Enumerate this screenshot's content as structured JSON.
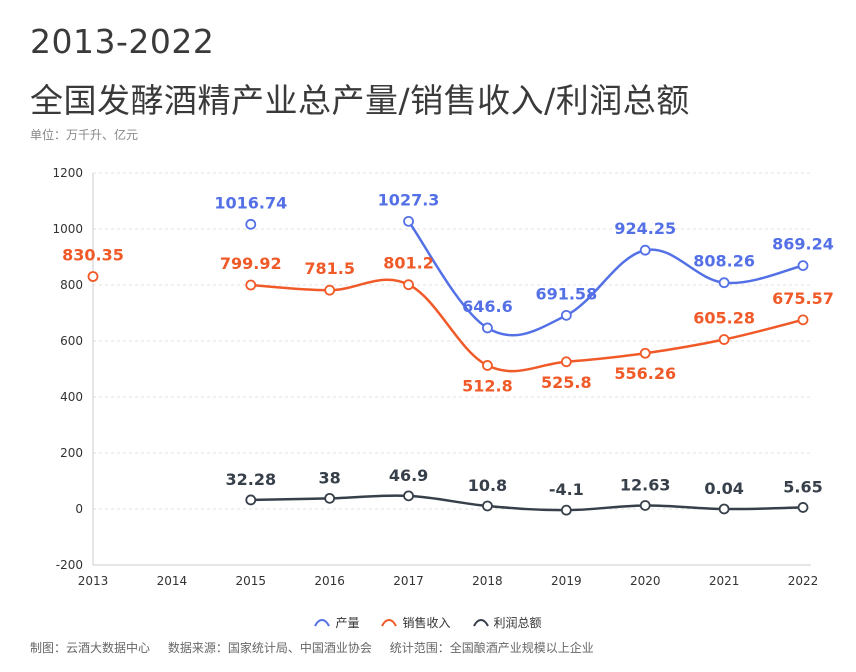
{
  "header": {
    "title_line1": "2013-2022",
    "title_line2": "全国发酵酒精产业总产量/销售收入/利润总额",
    "unit": "单位：万千升、亿元"
  },
  "chart_data": {
    "type": "line",
    "categories": [
      "2013",
      "2014",
      "2015",
      "2016",
      "2017",
      "2018",
      "2019",
      "2020",
      "2021",
      "2022"
    ],
    "ylim": [
      -200,
      1200
    ],
    "yticks": [
      -200,
      0,
      200,
      400,
      600,
      800,
      1000,
      1200
    ],
    "grid": true,
    "legend_position": "bottom-center",
    "series": [
      {
        "name": "产量",
        "color": "#5470e6",
        "values": [
          null,
          null,
          1016.74,
          null,
          1027.3,
          646.6,
          691.58,
          924.25,
          808.26,
          869.24
        ],
        "labels": [
          null,
          null,
          "1016.74",
          null,
          "1027.3",
          "646.6",
          "691.58",
          "924.25",
          "808.26",
          "869.24"
        ]
      },
      {
        "name": "销售收入",
        "color": "#f05a28",
        "values": [
          830.35,
          null,
          799.92,
          781.5,
          801.2,
          512.8,
          525.8,
          556.26,
          605.28,
          675.57
        ],
        "labels": [
          "830.35",
          null,
          "799.92",
          "781.5",
          "801.2",
          "512.8",
          "525.8",
          "556.26",
          "605.28",
          "675.57"
        ]
      },
      {
        "name": "利润总额",
        "color": "#37404a",
        "values": [
          null,
          null,
          32.28,
          38,
          46.9,
          10.8,
          -4.1,
          12.63,
          0.04,
          5.65
        ],
        "labels": [
          null,
          null,
          "32.28",
          "38",
          "46.9",
          "10.8",
          "-4.1",
          "12.63",
          "0.04",
          "5.65"
        ]
      }
    ]
  },
  "footer": {
    "made_by": "制图：云酒大数据中心",
    "source": "数据来源：国家统计局、中国酒业协会",
    "scope": "统计范围：全国酿酒产业规模以上企业"
  }
}
